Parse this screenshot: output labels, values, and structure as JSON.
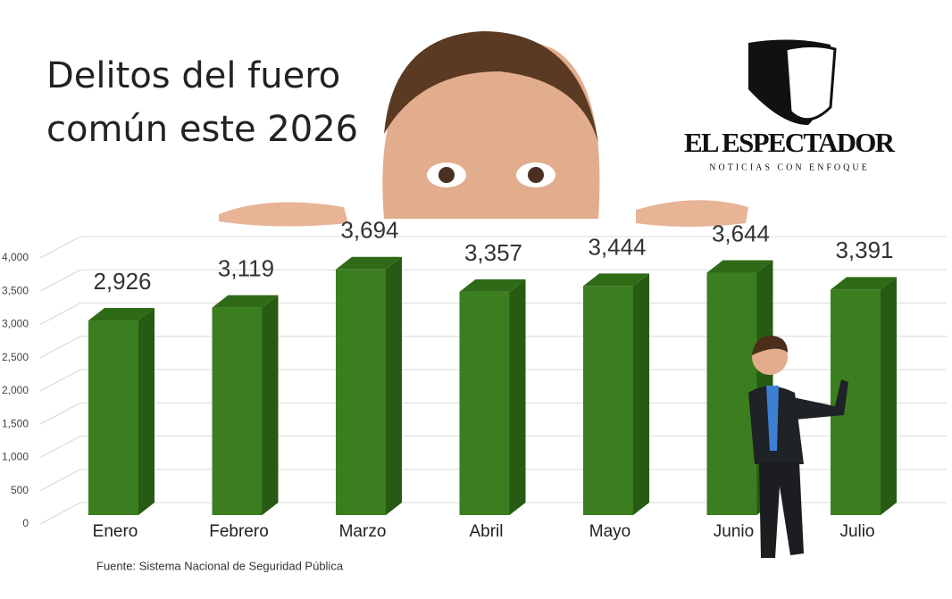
{
  "chart_data": {
    "type": "bar3d",
    "title": "Delitos del fuero común este 2026",
    "brand": "EL ESPECTADOR",
    "brand_tagline": "NOTICIAS CON ENFOQUE",
    "source": "Fuente: Sistema Nacional de Seguridad Pública",
    "categories": [
      "Enero",
      "Febrero",
      "Marzo",
      "Abril",
      "Mayo",
      "Junio",
      "Julio"
    ],
    "values": [
      2926,
      3119,
      3694,
      3357,
      3444,
      3644,
      3391
    ],
    "value_labels": [
      "2,926",
      "3,119",
      "3,694",
      "3,357",
      "3,444",
      "3,644",
      "3,391"
    ],
    "color": "#3b7e1f",
    "ylim": [
      0,
      4000
    ],
    "yticks": [
      0,
      500,
      {
        "value": 1000,
        "label": "1,000"
      },
      {
        "value": 1500,
        "label": "1,500"
      },
      {
        "value": 2000,
        "label": "2,000"
      },
      {
        "value": 2500,
        "label": "2,500"
      },
      {
        "value": 3000,
        "label": "3,000"
      },
      {
        "value": 3500,
        "label": "3,500"
      },
      {
        "value": 4000,
        "label": "4,000"
      }
    ],
    "grid": true
  }
}
